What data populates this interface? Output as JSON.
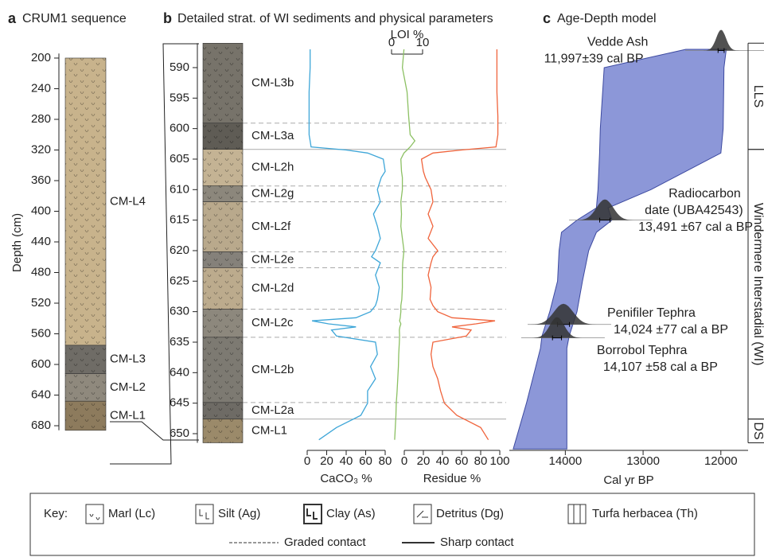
{
  "chart_data": [
    {
      "type": "strat-column",
      "label": "a",
      "title": "CRUM1 sequence",
      "ylabel": "Depth (cm)",
      "ylim": [
        194,
        686
      ],
      "yticks": [
        200,
        240,
        280,
        320,
        360,
        400,
        440,
        480,
        520,
        560,
        600,
        640,
        680
      ],
      "units": [
        {
          "name": "CM-L4",
          "top": 200,
          "bottom": 575,
          "color": "#c8b38c"
        },
        {
          "name": "CM-L3",
          "top": 575,
          "bottom": 612,
          "color": "#6f6c66"
        },
        {
          "name": "CM-L2",
          "top": 612,
          "bottom": 648,
          "color": "#8f897d"
        },
        {
          "name": "CM-L1",
          "top": 648,
          "bottom": 686,
          "color": "#8d7b5d"
        }
      ]
    },
    {
      "type": "strat-curves",
      "label": "b",
      "title": "Detailed strat. of WI sediments and physical parameters",
      "ylim": [
        586,
        651.5
      ],
      "yticks": [
        590,
        595,
        600,
        605,
        610,
        615,
        620,
        625,
        630,
        635,
        640,
        645,
        650
      ],
      "units": [
        {
          "name": "CM-L3b",
          "top": 586,
          "bottom": 599.1,
          "color": "#77736a",
          "boundary": "dashed"
        },
        {
          "name": "CM-L3a",
          "top": 599.1,
          "bottom": 603.4,
          "color": "#5f5c55",
          "boundary": "solid"
        },
        {
          "name": "CM-L2h",
          "top": 603.4,
          "bottom": 609.4,
          "color": "#c4b394",
          "boundary": "dashed"
        },
        {
          "name": "CM-L2g",
          "top": 609.4,
          "bottom": 612,
          "color": "#8c877c",
          "boundary": "dashed"
        },
        {
          "name": "CM-L2f",
          "top": 612,
          "bottom": 620.2,
          "color": "#b9a98c",
          "boundary": "dashed"
        },
        {
          "name": "CM-L2e",
          "top": 620.2,
          "bottom": 622.8,
          "color": "#85817a",
          "boundary": "dashed"
        },
        {
          "name": "CM-L2d",
          "top": 622.8,
          "bottom": 629.6,
          "color": "#bcab8d",
          "boundary": "dashed"
        },
        {
          "name": "CM-L2c",
          "top": 629.6,
          "bottom": 634.2,
          "color": "#8d887d",
          "boundary": "dashed"
        },
        {
          "name": "CM-L2b",
          "top": 634.2,
          "bottom": 644.9,
          "color": "#7d7a72",
          "boundary": "dashed"
        },
        {
          "name": "CM-L2a",
          "top": 644.9,
          "bottom": 647.6,
          "color": "#6e6b65",
          "boundary": "solid"
        },
        {
          "name": "CM-L1",
          "top": 647.6,
          "bottom": 651.5,
          "color": "#9b8a6a",
          "boundary": "none"
        }
      ],
      "depth": [
        587,
        590,
        594,
        598,
        601,
        602,
        603,
        603.5,
        604,
        605,
        607,
        608,
        610,
        612,
        614,
        616,
        618,
        620,
        621,
        622,
        624,
        626,
        628,
        629,
        630,
        631,
        631.5,
        632,
        632.5,
        633,
        634,
        635,
        637,
        639,
        641,
        643,
        645,
        647,
        649,
        651
      ],
      "series": [
        {
          "name": "CaCO₃ %",
          "color": "#3ea6d8",
          "xlim": [
            0,
            80
          ],
          "xticks": [
            0,
            20,
            40,
            60,
            80
          ],
          "values": [
            3,
            3,
            2,
            2,
            2,
            3,
            4,
            40,
            62,
            78,
            80,
            76,
            72,
            75,
            68,
            72,
            75,
            70,
            66,
            75,
            70,
            74,
            72,
            70,
            65,
            50,
            5,
            22,
            50,
            25,
            30,
            70,
            72,
            65,
            70,
            62,
            62,
            55,
            30,
            12
          ]
        },
        {
          "name": "LOI %",
          "color": "#8cc063",
          "xlim": [
            0,
            10
          ],
          "xticks": [
            0,
            10
          ],
          "values": [
            4,
            3.5,
            5,
            5.5,
            6,
            7.5,
            6,
            5,
            4,
            3,
            3.2,
            3.5,
            3.5,
            3,
            3.2,
            3,
            3.5,
            4,
            3.8,
            3.6,
            3.5,
            3.5,
            3.3,
            3,
            3,
            2.8,
            2.6,
            3,
            2.7,
            2.5,
            2.6,
            2.5,
            2.3,
            2.2,
            2,
            1.8,
            1.5,
            1.4,
            1.2,
            1
          ]
        },
        {
          "name": "Residue %",
          "color": "#f0643c",
          "xlim": [
            0,
            100
          ],
          "xticks": [
            0,
            20,
            40,
            60,
            80,
            100
          ],
          "values": [
            97,
            97,
            97,
            98,
            98,
            97,
            96,
            60,
            30,
            18,
            20,
            22,
            28,
            30,
            25,
            30,
            25,
            35,
            30,
            28,
            25,
            28,
            27,
            30,
            35,
            50,
            95,
            75,
            50,
            70,
            65,
            30,
            28,
            30,
            35,
            38,
            42,
            55,
            80,
            88
          ]
        }
      ]
    },
    {
      "type": "age-depth",
      "label": "c",
      "title": "Age-Depth model",
      "xlabel": "Cal yr BP",
      "xlim": [
        14720,
        11650
      ],
      "xticks": [
        14000,
        13000,
        12000
      ],
      "ylim": [
        586,
        651.5
      ],
      "color": "#8c97d8",
      "envelope": {
        "depth": [
          587,
          590,
          600,
          604,
          610,
          613,
          615,
          617,
          620,
          625,
          630,
          632,
          634,
          636,
          645,
          652.5
        ],
        "older": [
          12450,
          13500,
          13550,
          13560,
          13580,
          13600,
          13850,
          14050,
          14080,
          14100,
          14200,
          14250,
          14300,
          14320,
          14500,
          14670
        ],
        "younger": [
          11930,
          11960,
          11970,
          12000,
          12900,
          13450,
          13400,
          13600,
          13700,
          13780,
          13850,
          13900,
          13950,
          13980,
          13980,
          13980
        ]
      },
      "dates": [
        {
          "name": [
            "Vedde Ash"
          ],
          "label": "11,997±39 cal BP",
          "age": 11997,
          "error": 39,
          "depth": 587.2
        },
        {
          "name": [
            "Radiocarbon",
            "date (UBA42543)"
          ],
          "label": "13,491 ±67 cal a BP",
          "age": 13491,
          "error": 67,
          "depth": 615
        },
        {
          "name": [
            "Penifiler Tephra"
          ],
          "label": "14,024 ±77 cal a BP",
          "age": 14024,
          "error": 77,
          "depth": 632.1
        },
        {
          "name": [
            "Borrobol Tephra"
          ],
          "label": "14,107 ±58 cal a BP",
          "age": 14107,
          "error": 58,
          "depth": 634.3
        }
      ],
      "zones": [
        {
          "name": "LLS",
          "top": 586,
          "bottom": 603.4
        },
        {
          "name": "Windermere Interstadial (WI)",
          "top": 603.4,
          "bottom": 647.6
        },
        {
          "name": "DS",
          "top": 647.6,
          "bottom": 651.5
        }
      ]
    }
  ],
  "key": {
    "title": "Key:",
    "items": [
      "Marl (Lc)",
      "Silt (Ag)",
      "Clay (As)",
      "Detritus (Dg)",
      "Turfa herbacea (Th)"
    ],
    "contacts": [
      "Graded contact",
      "Sharp contact"
    ]
  }
}
